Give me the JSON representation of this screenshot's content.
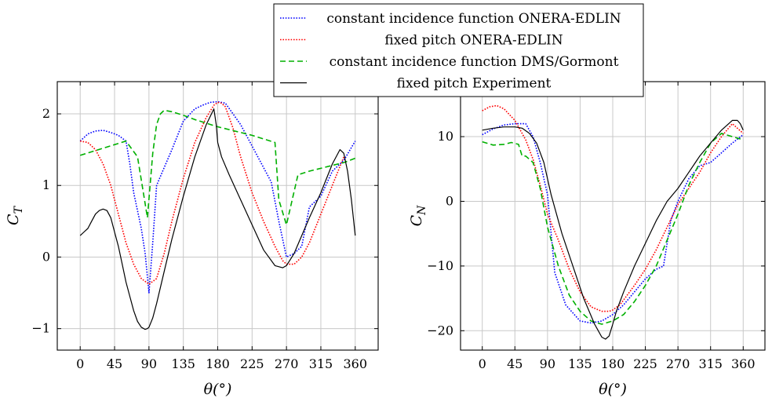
{
  "chart_data": [
    {
      "type": "line",
      "xlabel": "θ(°)",
      "ylabel": "C_T",
      "xlim": [
        -30,
        390
      ],
      "ylim": [
        -1.3,
        2.45
      ],
      "xticks": [
        0,
        45,
        90,
        135,
        180,
        225,
        270,
        315,
        360
      ],
      "yticks": [
        -1,
        0,
        1,
        2
      ],
      "grid": true,
      "legend": "top-center",
      "series": [
        {
          "name": "constant incidence function ONERA-EDLIN",
          "color": "#0000ff",
          "style": "dotted",
          "x": [
            0,
            10,
            20,
            30,
            40,
            50,
            60,
            65,
            70,
            80,
            85,
            90,
            95,
            100,
            110,
            120,
            135,
            150,
            160,
            170,
            180,
            190,
            200,
            210,
            220,
            230,
            240,
            250,
            260,
            270,
            280,
            290,
            300,
            315,
            330,
            345,
            360
          ],
          "y": [
            1.62,
            1.72,
            1.76,
            1.77,
            1.74,
            1.7,
            1.62,
            1.3,
            0.9,
            0.4,
            0.05,
            -0.5,
            0.2,
            1.0,
            1.25,
            1.5,
            1.9,
            2.07,
            2.12,
            2.16,
            2.17,
            2.15,
            2.0,
            1.85,
            1.65,
            1.45,
            1.25,
            1.05,
            0.5,
            0.0,
            0.05,
            0.15,
            0.7,
            0.85,
            1.2,
            1.35,
            1.62
          ]
        },
        {
          "name": "fixed pitch ONERA-EDLIN",
          "color": "#ff0000",
          "style": "dotted",
          "x": [
            0,
            10,
            20,
            30,
            40,
            50,
            60,
            70,
            80,
            90,
            100,
            110,
            120,
            135,
            150,
            165,
            175,
            180,
            185,
            190,
            200,
            210,
            225,
            240,
            255,
            265,
            270,
            280,
            290,
            300,
            315,
            330,
            345
          ],
          "y": [
            1.62,
            1.6,
            1.5,
            1.3,
            1.0,
            0.6,
            0.2,
            -0.1,
            -0.3,
            -0.38,
            -0.3,
            0.05,
            0.5,
            1.1,
            1.6,
            1.95,
            2.12,
            2.16,
            2.15,
            2.1,
            1.8,
            1.4,
            0.9,
            0.5,
            0.15,
            -0.05,
            -0.1,
            -0.1,
            0.0,
            0.2,
            0.6,
            1.0,
            1.4
          ]
        },
        {
          "name": "constant incidence function DMS/Gormont",
          "color": "#00b000",
          "style": "dashed",
          "x": [
            0,
            30,
            60,
            75,
            88,
            95,
            100,
            105,
            110,
            120,
            135,
            150,
            180,
            225,
            255,
            260,
            270,
            285,
            300,
            330,
            345,
            360
          ],
          "y": [
            1.42,
            1.52,
            1.62,
            1.4,
            0.55,
            1.45,
            1.85,
            2.0,
            2.05,
            2.03,
            1.98,
            1.92,
            1.82,
            1.7,
            1.6,
            0.8,
            0.45,
            1.15,
            1.2,
            1.28,
            1.32,
            1.38
          ]
        },
        {
          "name": "fixed pitch Experiment",
          "color": "#000000",
          "style": "solid",
          "x": [
            0,
            5,
            10,
            15,
            20,
            25,
            30,
            35,
            40,
            45,
            50,
            55,
            60,
            65,
            70,
            75,
            80,
            85,
            88,
            90,
            95,
            100,
            110,
            120,
            135,
            150,
            165,
            175,
            178,
            180,
            185,
            195,
            210,
            225,
            240,
            255,
            265,
            270,
            280,
            290,
            300,
            315,
            330,
            340,
            345,
            350,
            355,
            360
          ],
          "y": [
            0.3,
            0.35,
            0.4,
            0.5,
            0.6,
            0.65,
            0.67,
            0.65,
            0.55,
            0.35,
            0.15,
            -0.1,
            -0.35,
            -0.55,
            -0.75,
            -0.9,
            -0.98,
            -1.01,
            -1.0,
            -0.98,
            -0.85,
            -0.65,
            -0.2,
            0.25,
            0.85,
            1.4,
            1.85,
            2.07,
            1.85,
            1.6,
            1.4,
            1.15,
            0.8,
            0.45,
            0.1,
            -0.12,
            -0.15,
            -0.12,
            0.05,
            0.3,
            0.55,
            0.9,
            1.3,
            1.5,
            1.45,
            1.2,
            0.8,
            0.3
          ]
        }
      ]
    },
    {
      "type": "line",
      "xlabel": "θ(°)",
      "ylabel": "C_N",
      "xlim": [
        -30,
        390
      ],
      "ylim": [
        -23,
        18.5
      ],
      "xticks": [
        0,
        45,
        90,
        135,
        180,
        225,
        270,
        315,
        360
      ],
      "yticks": [
        -20,
        -10,
        0,
        10
      ],
      "grid": true,
      "series": [
        {
          "name": "constant incidence function ONERA-EDLIN",
          "color": "#0000ff",
          "style": "dotted",
          "x": [
            0,
            15,
            30,
            45,
            60,
            70,
            80,
            90,
            100,
            115,
            135,
            150,
            165,
            180,
            195,
            210,
            225,
            240,
            250,
            260,
            270,
            285,
            300,
            315,
            330,
            345,
            360
          ],
          "y": [
            10.3,
            11.2,
            11.8,
            12.0,
            12.0,
            10.0,
            6.0,
            1.0,
            -11.0,
            -16.0,
            -18.5,
            -18.8,
            -18.5,
            -17.5,
            -16.0,
            -14.0,
            -12.0,
            -10.5,
            -10.0,
            -3.0,
            0.0,
            3.5,
            5.5,
            6.0,
            7.5,
            9.0,
            10.3
          ]
        },
        {
          "name": "fixed pitch ONERA-EDLIN",
          "color": "#ff0000",
          "style": "dotted",
          "x": [
            0,
            10,
            20,
            30,
            45,
            60,
            70,
            80,
            90,
            105,
            120,
            135,
            150,
            165,
            175,
            180,
            190,
            210,
            225,
            240,
            255,
            270,
            285,
            300,
            315,
            330,
            345,
            360
          ],
          "y": [
            14.0,
            14.6,
            14.8,
            14.3,
            12.5,
            9.5,
            6.5,
            2.5,
            -2.0,
            -6.0,
            -10.5,
            -14.0,
            -16.3,
            -17.0,
            -17.0,
            -16.8,
            -16.0,
            -13.0,
            -10.5,
            -7.5,
            -4.0,
            -0.5,
            2.0,
            4.5,
            7.5,
            10.0,
            12.0,
            10.5
          ]
        },
        {
          "name": "constant incidence function DMS/Gormont",
          "color": "#00b000",
          "style": "dashed",
          "x": [
            0,
            15,
            30,
            40,
            50,
            55,
            60,
            70,
            80,
            90,
            105,
            120,
            135,
            150,
            165,
            180,
            195,
            210,
            225,
            240,
            255,
            270,
            285,
            300,
            315,
            330,
            345,
            360
          ],
          "y": [
            9.2,
            8.7,
            8.8,
            9.1,
            8.8,
            7.0,
            7.0,
            6.0,
            2.0,
            -4.0,
            -10.0,
            -14.5,
            -17.0,
            -18.5,
            -19.0,
            -18.5,
            -17.5,
            -15.5,
            -13.0,
            -10.0,
            -6.0,
            -2.0,
            2.5,
            6.0,
            9.0,
            10.5,
            10.0,
            9.5
          ]
        },
        {
          "name": "fixed pitch Experiment",
          "color": "#000000",
          "style": "solid",
          "x": [
            0,
            15,
            30,
            45,
            55,
            65,
            75,
            85,
            95,
            110,
            125,
            140,
            155,
            165,
            170,
            175,
            180,
            185,
            195,
            210,
            225,
            240,
            255,
            270,
            285,
            300,
            315,
            330,
            345,
            352,
            356,
            360
          ],
          "y": [
            11.0,
            11.3,
            11.5,
            11.5,
            11.3,
            10.5,
            9.0,
            6.0,
            1.0,
            -5.0,
            -10.0,
            -15.0,
            -19.0,
            -21.0,
            -21.3,
            -20.8,
            -19.0,
            -17.0,
            -14.0,
            -10.0,
            -6.5,
            -3.0,
            0.0,
            2.0,
            4.5,
            7.0,
            9.0,
            11.0,
            12.5,
            12.5,
            12.0,
            11.0
          ]
        }
      ]
    }
  ]
}
